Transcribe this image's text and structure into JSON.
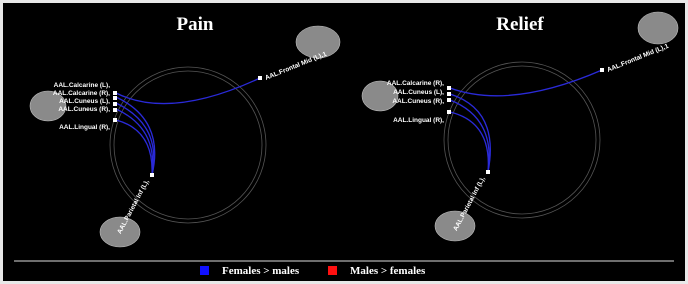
{
  "panels": [
    {
      "title": "Pain",
      "nodes": [
        {
          "label": "AAL.Calcarine (L),"
        },
        {
          "label": "AAL.Calcarine (R),"
        },
        {
          "label": "AAL.Cuneus (L),"
        },
        {
          "label": "AAL.Cuneus (R),"
        },
        {
          "label": "AAL.Lingual (R),"
        },
        {
          "label": "AAL.Frontal Mid (L),1"
        },
        {
          "label": "AAL.Parietal Inf (L),"
        }
      ]
    },
    {
      "title": "Relief",
      "nodes": [
        {
          "label": "AAL.Calcarine (R),"
        },
        {
          "label": "AAL.Cuneus (L),"
        },
        {
          "label": "AAL.Cuneus (R),"
        },
        {
          "label": "AAL.Lingual (R),"
        },
        {
          "label": "AAL.Frontal Mid (L),1"
        },
        {
          "label": "AAL.Parietal Inf (L),"
        }
      ]
    }
  ],
  "legend": {
    "items": [
      {
        "label": "Females > males",
        "color": "#1010ff"
      },
      {
        "label": "Males > females",
        "color": "#ff1010"
      }
    ]
  }
}
